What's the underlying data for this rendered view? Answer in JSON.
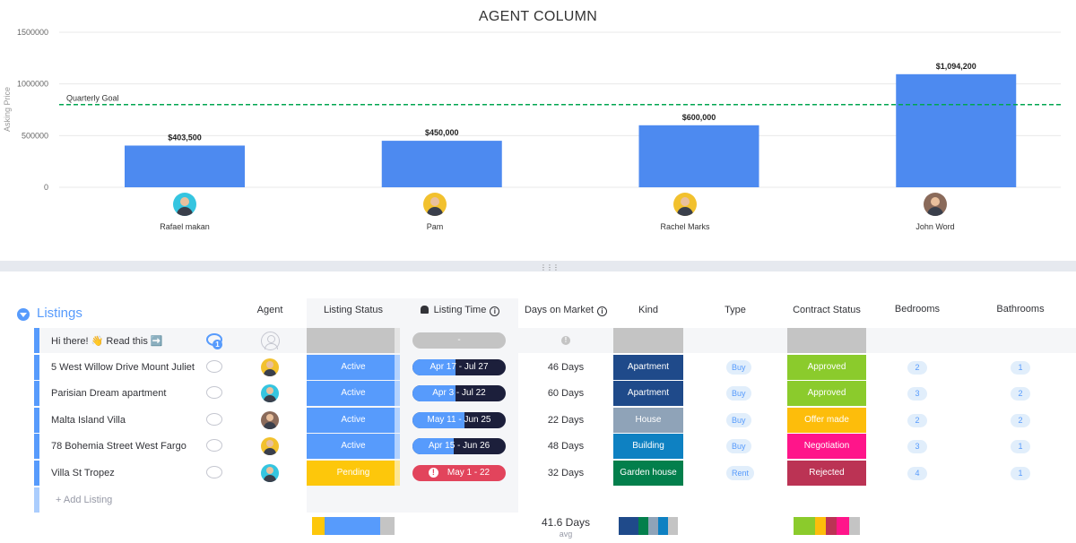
{
  "chart_data": {
    "type": "bar",
    "title": "AGENT COLUMN",
    "ylabel": "Asking Price",
    "xlabel": "",
    "ylim": [
      0,
      1500000
    ],
    "yticks": [
      "0",
      "500000",
      "1000000",
      "1500000"
    ],
    "ytick_values": [
      0,
      500000,
      1000000,
      1500000
    ],
    "categories": [
      "Rafael makan",
      "Pam",
      "Rachel Marks",
      "John Word"
    ],
    "values": [
      403500,
      450000,
      600000,
      1094200
    ],
    "data_labels": [
      "$403,500",
      "$450,000",
      "$600,000",
      "$1,094,200"
    ],
    "bar_color": "#4d8af0",
    "grid": true,
    "reference_line": {
      "label": "Quarterly Goal",
      "value": 800000,
      "color": "#00a650",
      "style": "dashed"
    }
  },
  "agents": [
    {
      "name": "Rafael makan",
      "avatar_bg": "#35c5e0"
    },
    {
      "name": "Pam",
      "avatar_bg": "#f2c12e"
    },
    {
      "name": "Rachel Marks",
      "avatar_bg": "#f2c12e"
    },
    {
      "name": "John Word",
      "avatar_bg": "#8a6a5a"
    }
  ],
  "board": {
    "group_title": "Listings",
    "columns": {
      "agent": "Agent",
      "listing_status": "Listing Status",
      "listing_time": "Listing Time",
      "days_on_market": "Days on Market",
      "kind": "Kind",
      "type": "Type",
      "contract_status": "Contract Status",
      "bedrooms": "Bedrooms",
      "bathrooms": "Bathrooms"
    },
    "info_glyph": "i",
    "rows": [
      {
        "name": "Hi there! 👋 Read this ➡️",
        "comments": "1",
        "agent": "",
        "listing_status": "",
        "listing_time": "-",
        "days": "!",
        "kind": "",
        "type": "",
        "contract": "",
        "bedrooms": "",
        "bathrooms": ""
      },
      {
        "name": "5 West Willow Drive Mount Juliet",
        "agent": "Pam",
        "listing_status": "Active",
        "listing_time": "Apr 17 - Jul 27",
        "days": "46 Days",
        "kind": "Apartment",
        "type": "Buy",
        "contract": "Approved",
        "bedrooms": "2",
        "bathrooms": "1"
      },
      {
        "name": "Parisian Dream apartment",
        "agent": "Rafael makan",
        "listing_status": "Active",
        "listing_time": "Apr 3 - Jul 22",
        "days": "60 Days",
        "kind": "Apartment",
        "type": "Buy",
        "contract": "Approved",
        "bedrooms": "3",
        "bathrooms": "2"
      },
      {
        "name": "Malta Island Villa",
        "agent": "John Word",
        "listing_status": "Active",
        "listing_time": "May 11 - Jun 25",
        "days": "22 Days",
        "kind": "House",
        "type": "Buy",
        "contract": "Offer made",
        "bedrooms": "2",
        "bathrooms": "2"
      },
      {
        "name": "78 Bohemia Street West Fargo",
        "agent": "Rachel Marks",
        "listing_status": "Active",
        "listing_time": "Apr 15 - Jun 26",
        "days": "48 Days",
        "kind": "Building",
        "type": "Buy",
        "contract": "Negotiation",
        "bedrooms": "3",
        "bathrooms": "1"
      },
      {
        "name": "Villa St Tropez",
        "agent": "Rafael makan",
        "listing_status": "Pending",
        "listing_time": "May 1 - 22",
        "days": "32 Days",
        "kind": "Garden house",
        "type": "Rent",
        "contract": "Rejected",
        "bedrooms": "4",
        "bathrooms": "1"
      }
    ],
    "add_label": "+ Add Listing",
    "summary": {
      "avg_value": "41.6 Days",
      "avg_label": "avg"
    }
  },
  "colors": {
    "active": "#579bfc",
    "pending": "#fdc70b",
    "empty": "#c4c4c4",
    "apartment": "#1f4a8a",
    "house": "#8fa3b8",
    "building": "#0e81c2",
    "garden_house": "#037f4c",
    "approved": "#8bcb2c",
    "offer_made": "#fdbd0b",
    "negotiation": "#ff158a",
    "rejected": "#bb3354",
    "timeline_dark": "#1c1f3b",
    "timeline_red": "#e2445c"
  }
}
